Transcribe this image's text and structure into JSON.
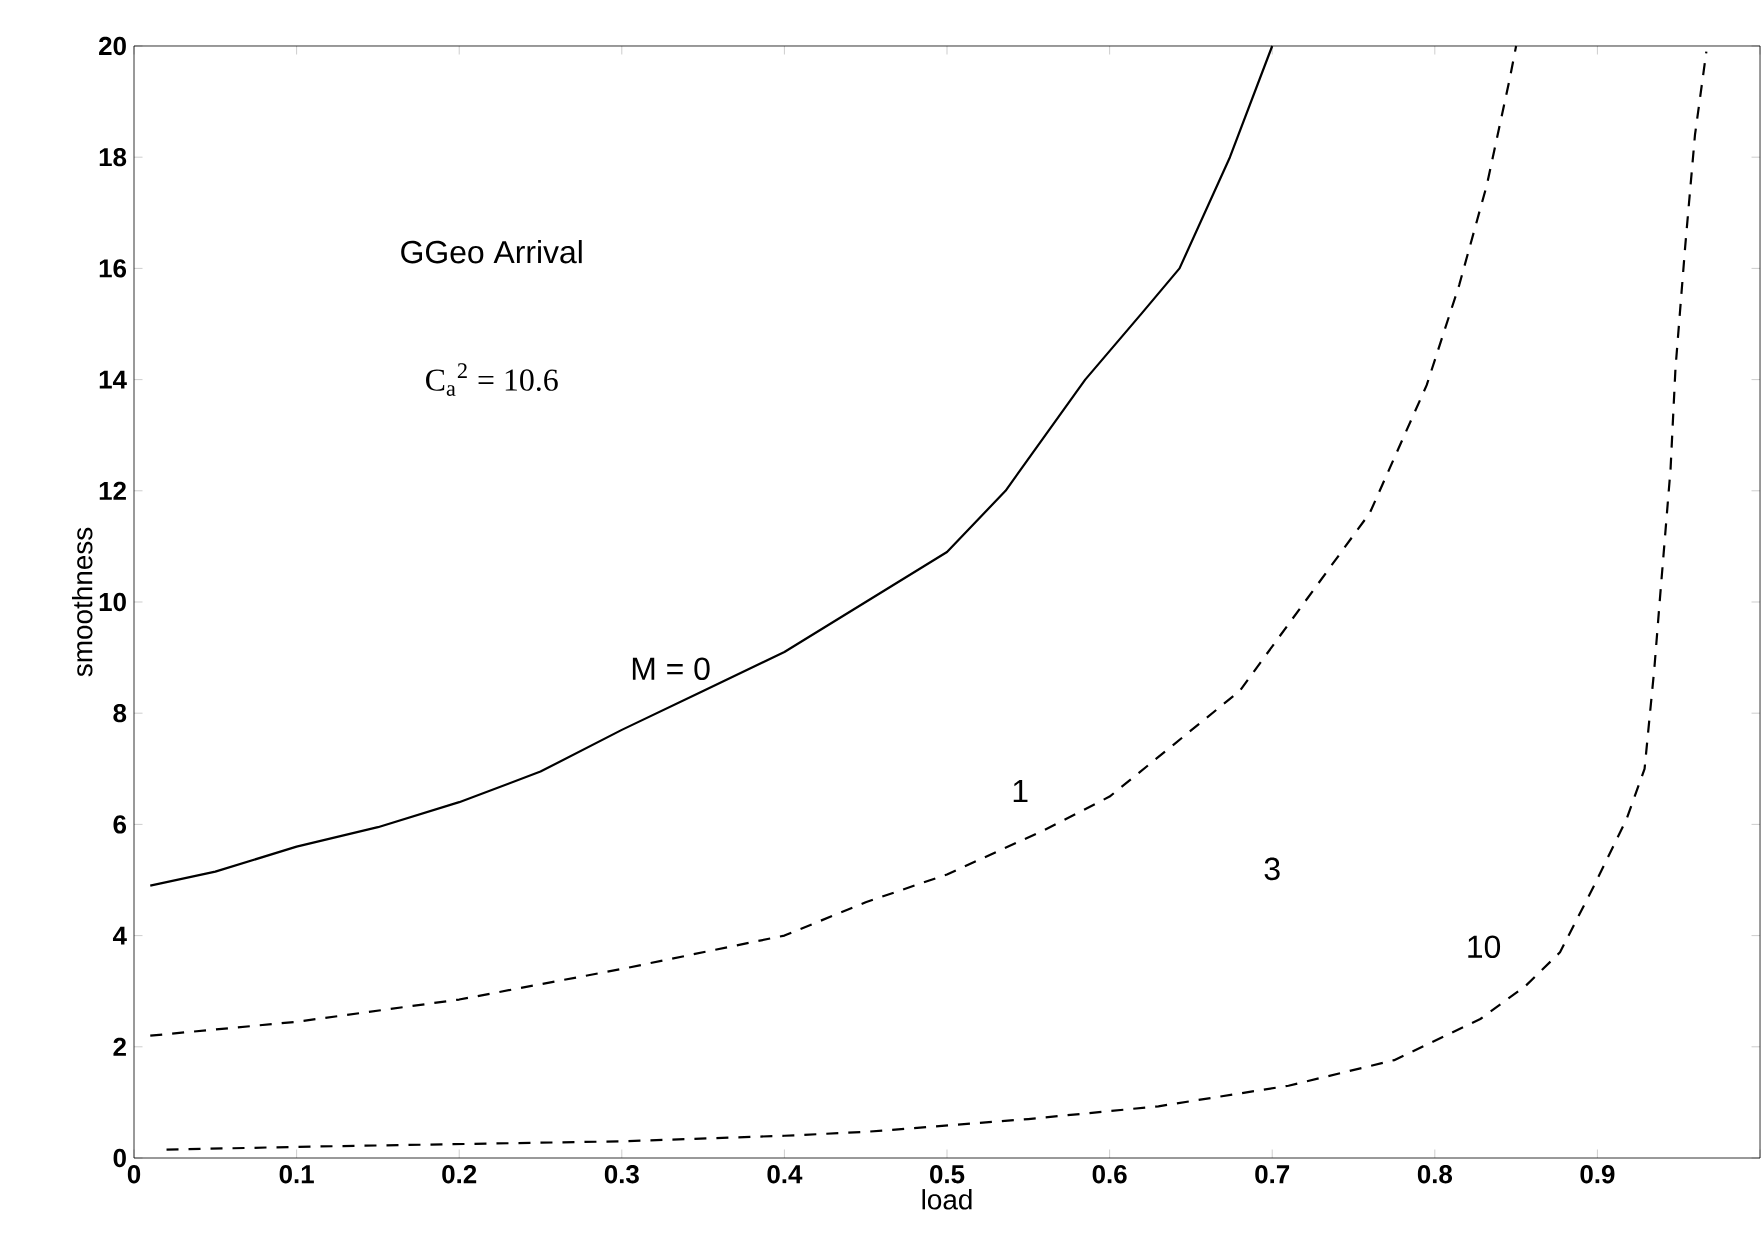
{
  "chart_data": {
    "type": "line",
    "xlabel": "load",
    "ylabel": "smoothness",
    "xlim": [
      0,
      1
    ],
    "ylim": [
      0,
      20
    ],
    "xticks": [
      0,
      0.1,
      0.2,
      0.3,
      0.4,
      0.5,
      0.6,
      0.7,
      0.8,
      0.9,
      {
        "value": 1,
        "label": null
      }
    ],
    "yticks": [
      0,
      2,
      4,
      6,
      8,
      10,
      12,
      14,
      16,
      18,
      20
    ],
    "marker": "none",
    "series": [
      {
        "color": "#000000",
        "line_style": "solid",
        "x": [
          0.01,
          0.05,
          0.1,
          0.15,
          0.2,
          0.25,
          0.3,
          0.35,
          0.4,
          0.45,
          0.5,
          0.536,
          0.585,
          0.62,
          0.643,
          0.674,
          0.7
        ],
        "values": [
          4.9,
          5.15,
          5.6,
          5.95,
          6.4,
          6.95,
          7.7,
          8.4,
          9.1,
          10,
          10.9,
          12,
          14,
          15.2,
          16,
          18,
          20
        ]
      },
      {
        "color": "#000000",
        "line_style": "dashed",
        "x": [
          0.01,
          0.1,
          0.2,
          0.3,
          0.4,
          0.45,
          0.5,
          0.56,
          0.6,
          0.64,
          0.68,
          0.71,
          0.76,
          0.795,
          0.815,
          0.832,
          0.846,
          0.85
        ],
        "values": [
          2.2,
          2.45,
          2.85,
          3.4,
          4.0,
          4.6,
          5.1,
          5.9,
          6.5,
          7.45,
          8.4,
          9.6,
          11.6,
          13.9,
          15.7,
          17.5,
          19.4,
          20
        ]
      },
      {
        "color": "#000000",
        "line_style": "dashed",
        "x": [
          0.02,
          0.1,
          0.2,
          0.3,
          0.4,
          0.45,
          0.55,
          0.63,
          0.71,
          0.775,
          0.828,
          0.856,
          0.877,
          0.898,
          0.918,
          0.929,
          0.935,
          0.938,
          0.945,
          0.948,
          0.954,
          0.96,
          0.967
        ],
        "values": [
          0.15,
          0.2,
          0.25,
          0.3,
          0.4,
          0.47,
          0.7,
          0.93,
          1.3,
          1.76,
          2.5,
          3.1,
          3.7,
          4.9,
          6.1,
          7.0,
          8.8,
          9.9,
          12.4,
          14.2,
          16.4,
          18.4,
          19.9
        ]
      }
    ],
    "annotations": [
      "GGeo Arrival",
      "C$_{a}$$^{2}$ = 10.6",
      "M = 0",
      "1",
      "3",
      "10"
    ]
  }
}
